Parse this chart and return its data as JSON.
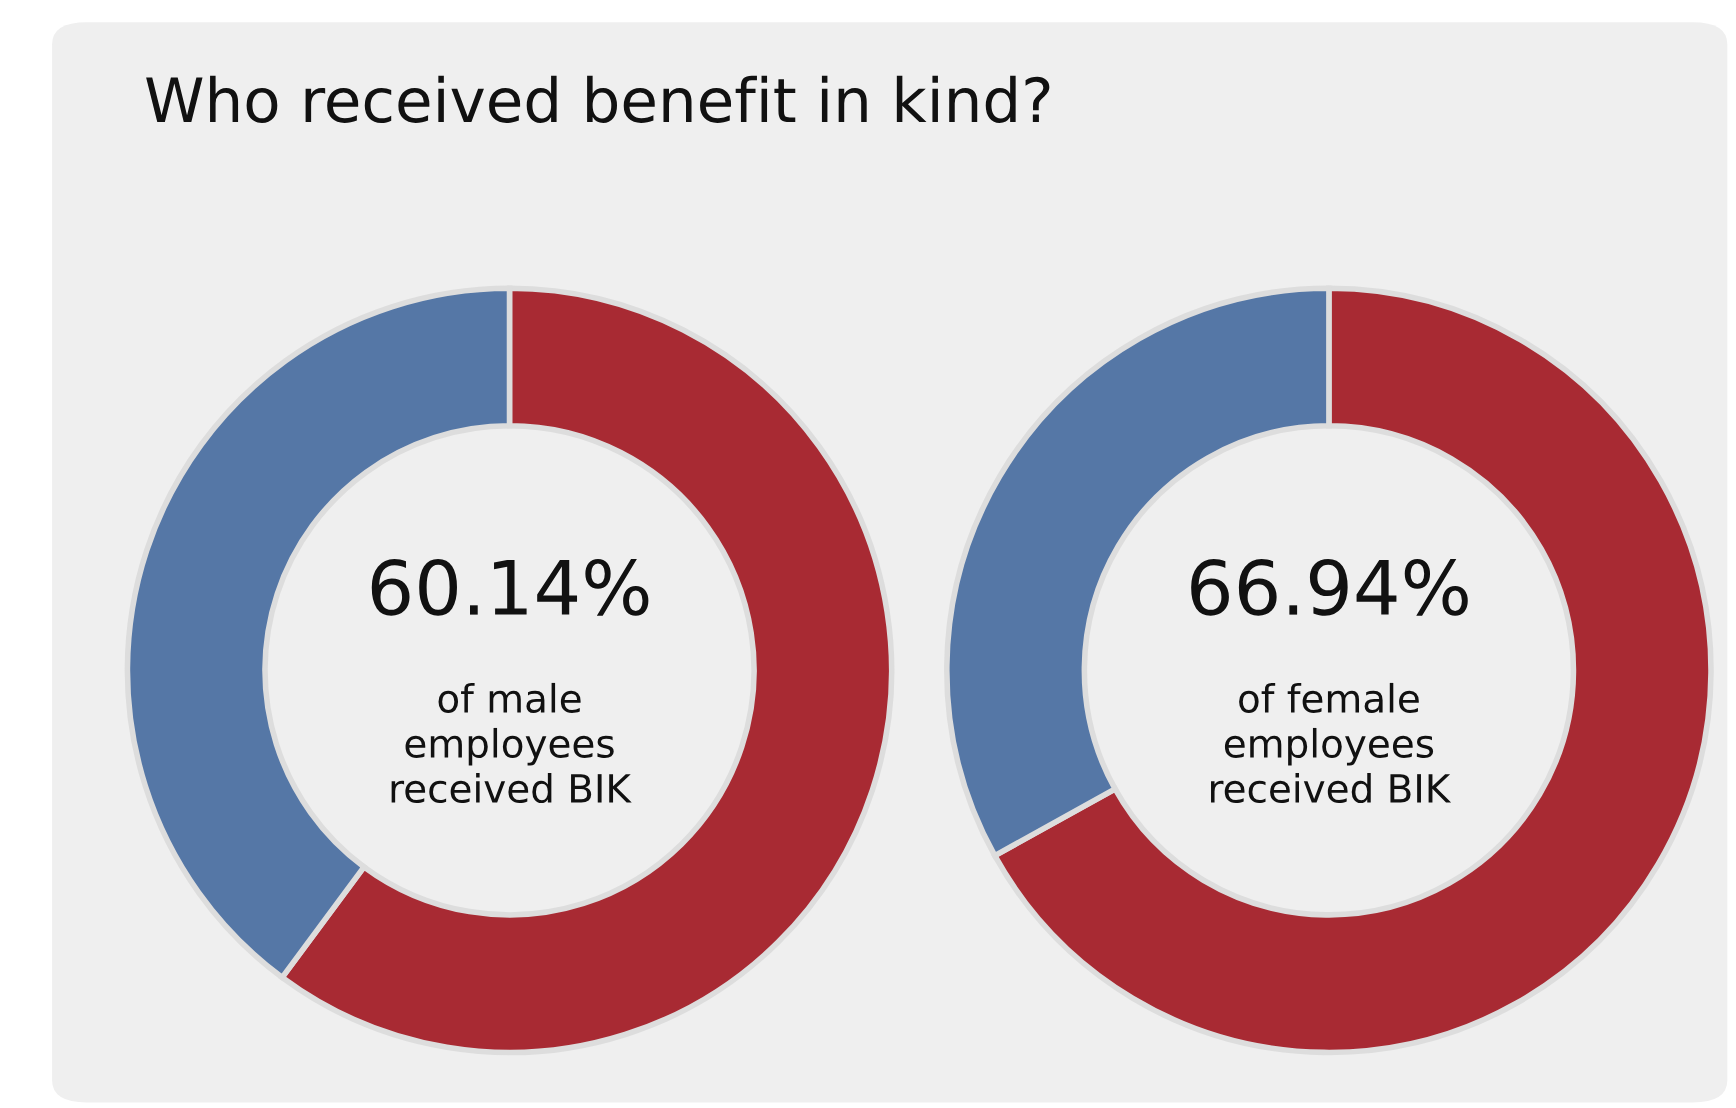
{
  "chart_data": [
    {
      "type": "donut",
      "title": "Who received benefit in kind?",
      "categories": [
        null,
        null
      ],
      "values": [
        60.14,
        39.86
      ],
      "colors": [
        "#a82a33",
        "#5577a6"
      ],
      "value_labels": [
        "60.14%",
        null
      ],
      "annotations": [
        "of male\nemployees\nreceived BIK"
      ]
    },
    {
      "type": "donut",
      "categories": [
        null,
        null
      ],
      "values": [
        66.94,
        33.06
      ],
      "colors": [
        "#a82a33",
        "#5577a6"
      ],
      "value_labels": [
        "66.94%",
        null
      ],
      "annotations": [
        "of female\nemployees\nreceived BIK"
      ]
    }
  ]
}
